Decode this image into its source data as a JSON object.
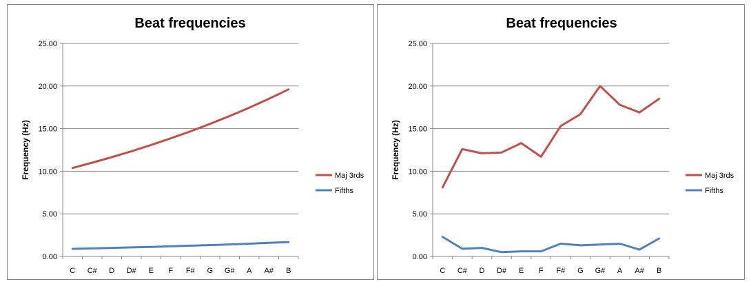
{
  "chart_data": [
    {
      "type": "line",
      "title": "Beat frequencies",
      "xlabel": "",
      "ylabel": "Frequency (Hz)",
      "ylim": [
        0,
        25
      ],
      "yticks": [
        "0.00",
        "5.00",
        "10.00",
        "15.00",
        "20.00",
        "25.00"
      ],
      "categories": [
        "C",
        "C#",
        "D",
        "D#",
        "E",
        "F",
        "F#",
        "G",
        "G#",
        "A",
        "A#",
        "B"
      ],
      "grid": true,
      "legend": "right",
      "series": [
        {
          "name": "Maj 3rds",
          "color": "#C0504D",
          "values": [
            10.38,
            11.0,
            11.65,
            12.35,
            13.08,
            13.86,
            14.68,
            15.56,
            16.48,
            17.46,
            18.5,
            19.6
          ]
        },
        {
          "name": "Fifths",
          "color": "#4F81BD",
          "values": [
            0.89,
            0.94,
            1.0,
            1.06,
            1.12,
            1.19,
            1.26,
            1.33,
            1.41,
            1.5,
            1.59,
            1.68
          ]
        }
      ]
    },
    {
      "type": "line",
      "title": "Beat frequencies",
      "xlabel": "",
      "ylabel": "Frequency (Hz)",
      "ylim": [
        0,
        25
      ],
      "yticks": [
        "0.00",
        "5.00",
        "10.00",
        "15.00",
        "20.00",
        "25.00"
      ],
      "categories": [
        "C",
        "C#",
        "D",
        "D#",
        "E",
        "F",
        "F#",
        "G",
        "G#",
        "A",
        "A#",
        "B"
      ],
      "grid": true,
      "legend": "right",
      "series": [
        {
          "name": "Maj 3rds",
          "color": "#C0504D",
          "values": [
            8.1,
            12.6,
            12.1,
            12.2,
            13.3,
            11.7,
            15.3,
            16.7,
            20.0,
            17.8,
            16.9,
            18.5
          ]
        },
        {
          "name": "Fifths",
          "color": "#4F81BD",
          "values": [
            2.3,
            0.9,
            1.0,
            0.5,
            0.6,
            0.6,
            1.5,
            1.3,
            1.4,
            1.5,
            0.8,
            2.1
          ]
        }
      ]
    }
  ]
}
